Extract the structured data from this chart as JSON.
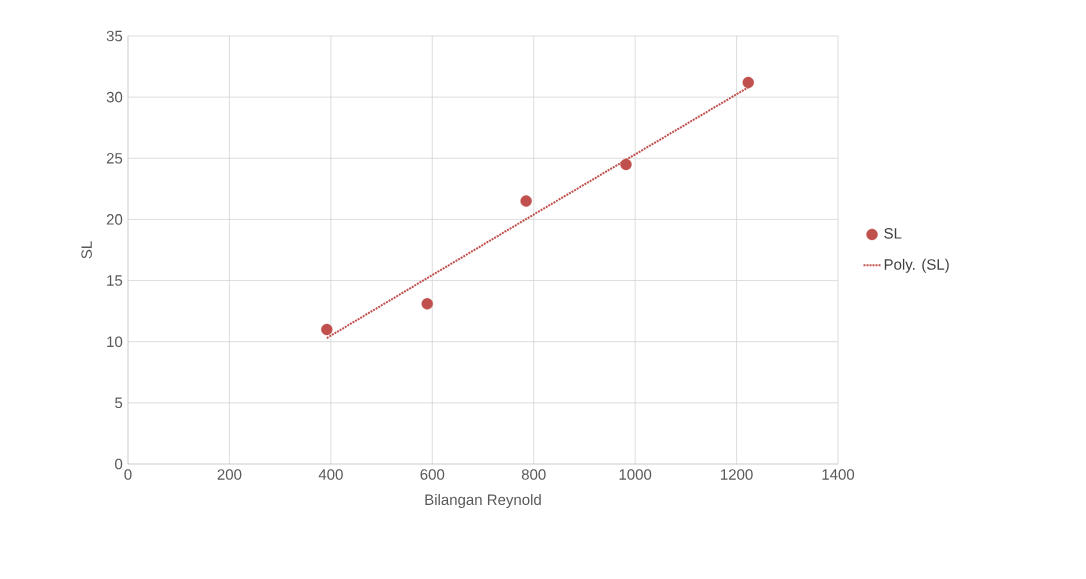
{
  "chart_data": {
    "type": "scatter",
    "xlabel": "Bilangan Reynold",
    "ylabel": "SL",
    "xlim": [
      0,
      1400
    ],
    "xticks": [
      0,
      200,
      400,
      600,
      800,
      1000,
      1200,
      1400
    ],
    "ylim": [
      0,
      35
    ],
    "yticks": [
      0,
      5,
      10,
      15,
      20,
      25,
      30,
      35
    ],
    "grid": true,
    "legend": "right",
    "series": [
      {
        "name": "SL",
        "marker": "circle",
        "color": "#c0504d",
        "x": [
          392,
          590,
          785,
          982,
          1223
        ],
        "values": [
          11.0,
          13.1,
          21.5,
          24.5,
          31.2
        ]
      },
      {
        "name": "Poly. (SL)",
        "type": "line",
        "marker": "none",
        "line_style": "dotted",
        "color": "#c0504d",
        "x": [
          392,
          800,
          1223
        ],
        "values": [
          10.3,
          20.4,
          30.8
        ]
      }
    ]
  }
}
